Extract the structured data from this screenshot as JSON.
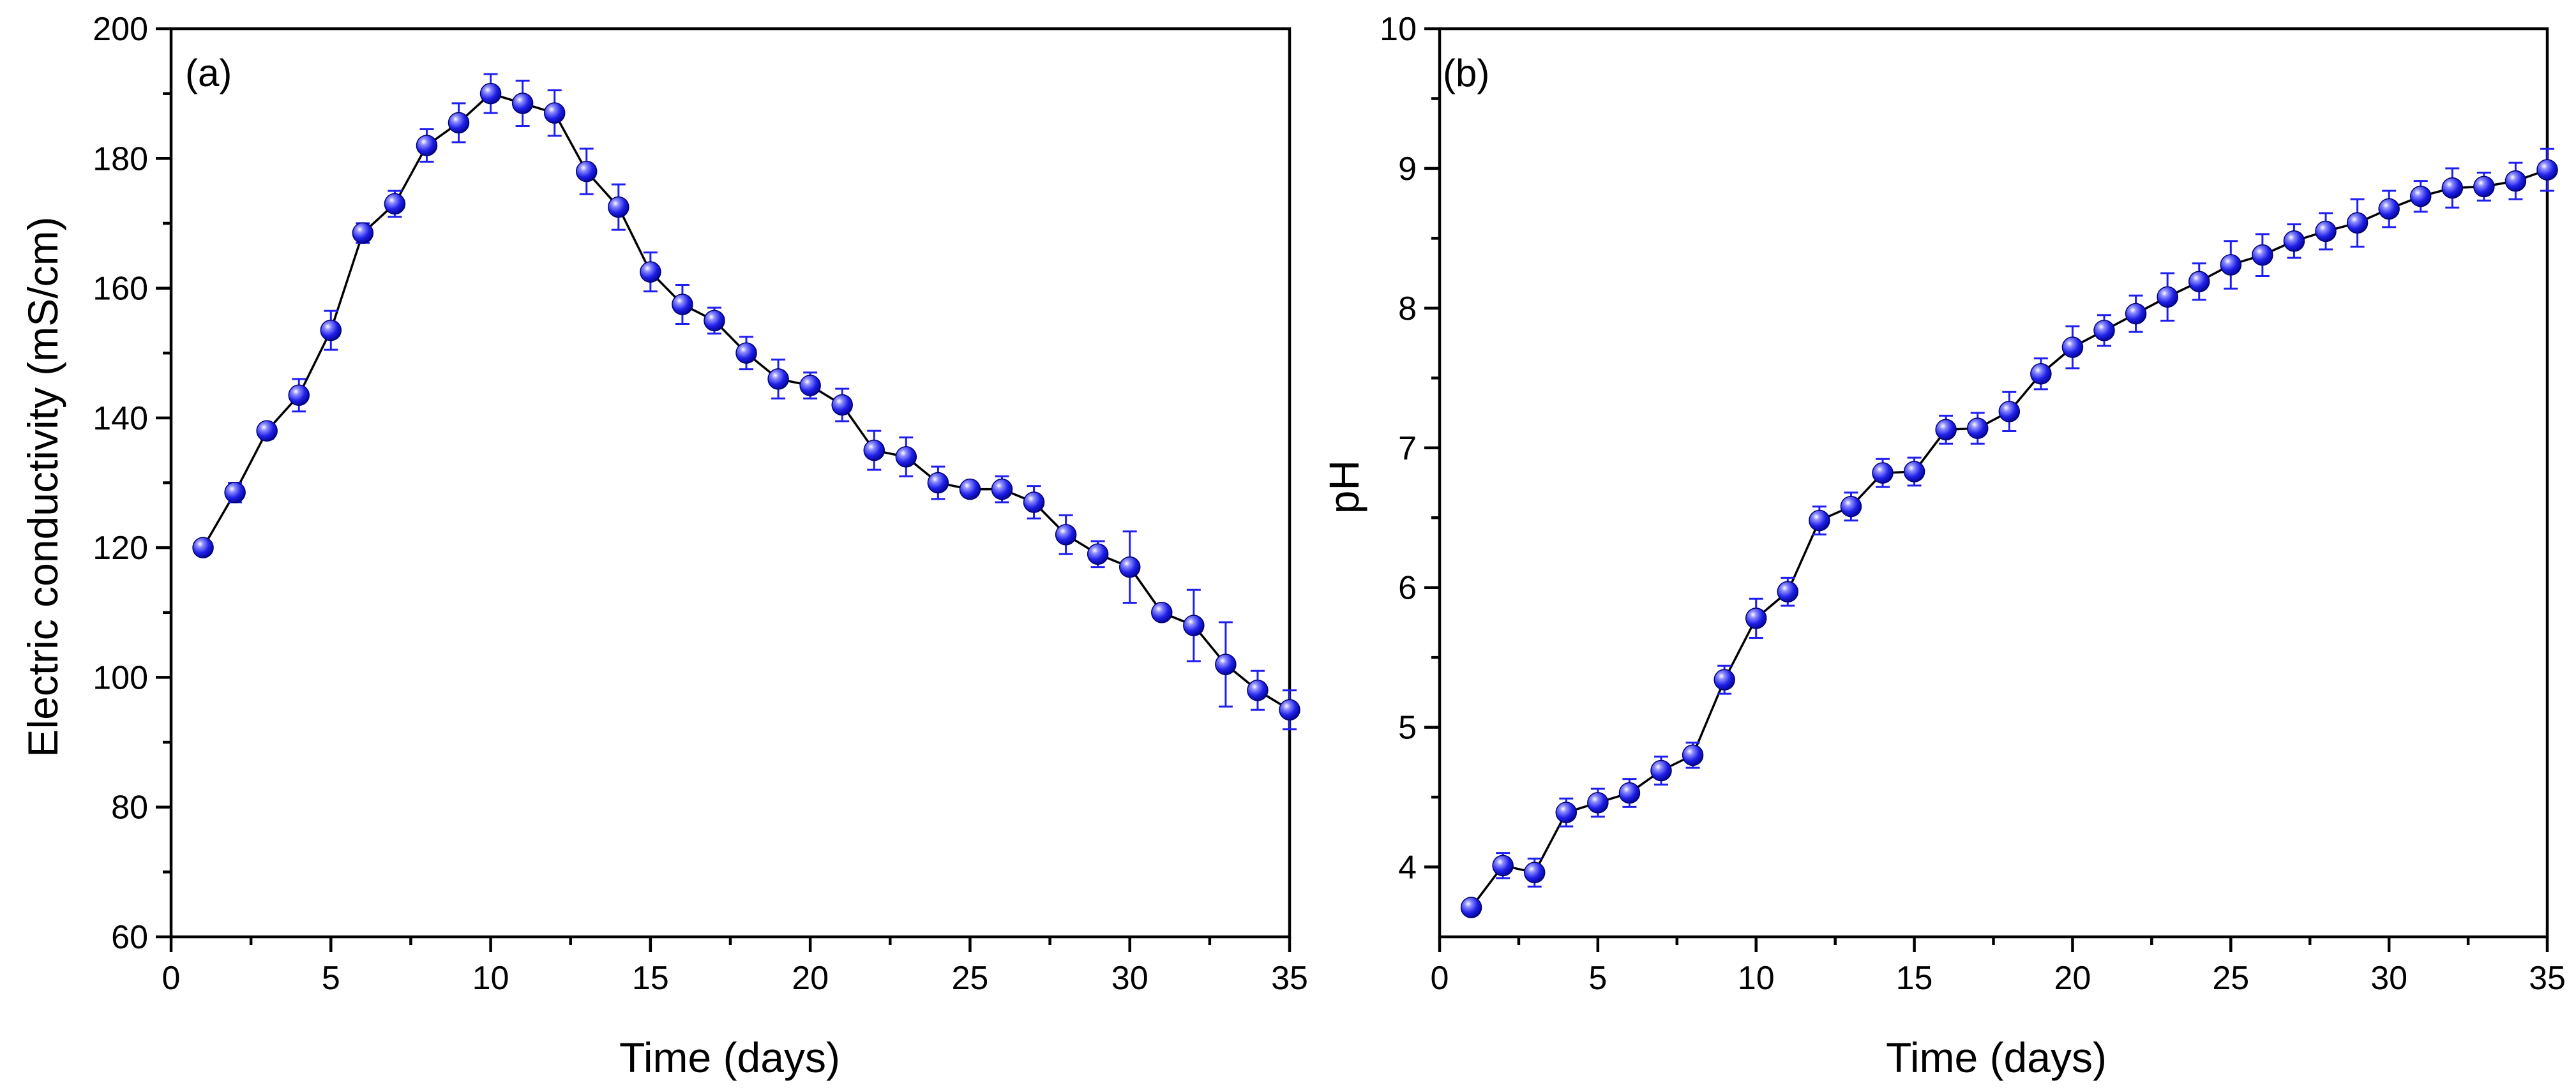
{
  "chart_data": [
    {
      "type": "scatter",
      "panel_label": "(a)",
      "title": "",
      "xlabel": "Time (days)",
      "ylabel": "Electric conductivity (mS/cm)",
      "xlim": [
        0,
        35
      ],
      "ylim": [
        60,
        200
      ],
      "xticks": [
        0,
        5,
        10,
        15,
        20,
        25,
        30,
        35
      ],
      "yticks": [
        60,
        80,
        100,
        120,
        140,
        160,
        180,
        200
      ],
      "grid": false,
      "marker_color": "#1a1aff",
      "line_color": "#000000",
      "series": [
        {
          "name": "Electric conductivity",
          "x": [
            1,
            2,
            3,
            4,
            5,
            6,
            7,
            8,
            9,
            10,
            11,
            12,
            13,
            14,
            15,
            16,
            17,
            18,
            19,
            20,
            21,
            22,
            23,
            24,
            25,
            26,
            27,
            28,
            29,
            30,
            31,
            32,
            33,
            34,
            35
          ],
          "y": [
            120,
            128.5,
            138,
            143.5,
            153.5,
            168.5,
            173,
            182,
            185.5,
            190,
            188.5,
            187,
            178,
            172.5,
            162.5,
            157.5,
            155,
            150,
            146,
            145,
            142,
            135,
            134,
            130,
            129,
            129,
            127,
            122,
            119,
            117,
            110,
            108,
            102,
            98,
            95
          ],
          "err": [
            0.8,
            1.5,
            1.2,
            2.5,
            3,
            1.5,
            2,
            2.5,
            3,
            3,
            3.5,
            3.5,
            3.5,
            3.5,
            3,
            3,
            2,
            2.5,
            3,
            2,
            2.5,
            3,
            3,
            2.5,
            1,
            2,
            2.5,
            3,
            2,
            5.5,
            1,
            5.5,
            6.5,
            3,
            3
          ]
        }
      ]
    },
    {
      "type": "scatter",
      "panel_label": "(b)",
      "title": "",
      "xlabel": "Time (days)",
      "ylabel": "pH",
      "xlim": [
        0,
        35
      ],
      "ylim": [
        3.5,
        10
      ],
      "xticks": [
        0,
        5,
        10,
        15,
        20,
        25,
        30,
        35
      ],
      "yticks": [
        4,
        5,
        6,
        7,
        8,
        9,
        10
      ],
      "grid": false,
      "marker_color": "#1a1aff",
      "line_color": "#000000",
      "series": [
        {
          "name": "pH",
          "x": [
            1,
            2,
            3,
            4,
            5,
            6,
            7,
            8,
            9,
            10,
            11,
            12,
            13,
            14,
            15,
            16,
            17,
            18,
            19,
            20,
            21,
            22,
            23,
            24,
            25,
            26,
            27,
            28,
            29,
            30,
            31,
            32,
            33,
            34,
            35
          ],
          "y": [
            3.71,
            4.01,
            3.96,
            4.39,
            4.46,
            4.53,
            4.69,
            4.8,
            5.34,
            5.78,
            5.97,
            6.48,
            6.58,
            6.82,
            6.83,
            7.13,
            7.14,
            7.26,
            7.53,
            7.72,
            7.84,
            7.96,
            8.08,
            8.19,
            8.31,
            8.38,
            8.48,
            8.55,
            8.61,
            8.71,
            8.8,
            8.86,
            8.87,
            8.91,
            8.99
          ],
          "err": [
            0.05,
            0.09,
            0.1,
            0.1,
            0.1,
            0.1,
            0.1,
            0.09,
            0.1,
            0.14,
            0.1,
            0.1,
            0.1,
            0.1,
            0.1,
            0.1,
            0.11,
            0.14,
            0.11,
            0.15,
            0.11,
            0.13,
            0.17,
            0.13,
            0.17,
            0.15,
            0.12,
            0.13,
            0.17,
            0.13,
            0.11,
            0.14,
            0.1,
            0.13,
            0.15
          ]
        }
      ]
    }
  ]
}
